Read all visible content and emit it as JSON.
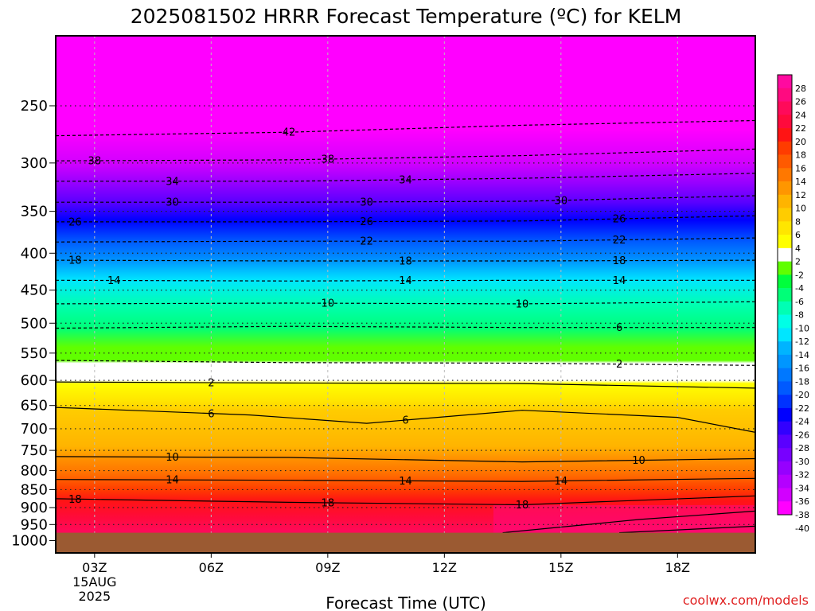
{
  "chart_data": {
    "type": "heatmap",
    "title": "2025081502 HRRR Forecast Temperature (ºC) for KELM",
    "xlabel": "Forecast Time (UTC)",
    "x_ticks": [
      "03Z",
      "06Z",
      "09Z",
      "12Z",
      "15Z",
      "18Z"
    ],
    "x_tick_sub": [
      "15AUG",
      "2025"
    ],
    "x_range_hours": [
      2,
      20
    ],
    "y_ticks": [
      250,
      300,
      350,
      400,
      450,
      500,
      550,
      600,
      650,
      700,
      750,
      800,
      850,
      900,
      950,
      1000
    ],
    "y_range_hPa": [
      200,
      1040
    ],
    "y_scale": "log-pressure",
    "surface_hPa": 975,
    "colorbar_labels": [
      "28",
      "26",
      "24",
      "22",
      "20",
      "18",
      "16",
      "14",
      "12",
      "10",
      "8",
      "6",
      "4",
      "2",
      "-2",
      "-4",
      "-6",
      "-8",
      "-10",
      "-12",
      "-14",
      "-16",
      "-18",
      "-20",
      "-22",
      "-24",
      "-26",
      "-28",
      "-30",
      "-32",
      "-34",
      "-36",
      "-38",
      "-40"
    ],
    "colorbar_colors": [
      "#ff0aa0",
      "#ff0a80",
      "#ff0a5a",
      "#ff0a3c",
      "#ff1414",
      "#ff3c00",
      "#ff5a00",
      "#ff7800",
      "#ff9600",
      "#ffb400",
      "#ffcc00",
      "#ffe600",
      "#ffff00",
      "#ffffff",
      "#60ff00",
      "#00ff3c",
      "#00ff78",
      "#00ffb4",
      "#00ffe6",
      "#00e6ff",
      "#00b4ff",
      "#0096ff",
      "#0078ff",
      "#005aff",
      "#0032ff",
      "#0000ff",
      "#3200ff",
      "#5a00ff",
      "#7800ff",
      "#9600ff",
      "#b400ff",
      "#d200ff",
      "#ff00ff"
    ],
    "isotherms": [
      {
        "value": -42,
        "label": "42",
        "label_x": [
          8
        ],
        "points": [
          [
            2,
            275
          ],
          [
            8,
            272
          ],
          [
            14,
            266
          ],
          [
            20,
            262
          ]
        ]
      },
      {
        "value": -38,
        "label": "38",
        "label_x": [
          3,
          9
        ],
        "points": [
          [
            2,
            298
          ],
          [
            8,
            297
          ],
          [
            14,
            293
          ],
          [
            20,
            287
          ]
        ]
      },
      {
        "value": -34,
        "label": "34",
        "label_x": [
          5,
          11
        ],
        "points": [
          [
            2,
            318
          ],
          [
            8,
            318
          ],
          [
            14,
            315
          ],
          [
            20,
            310
          ]
        ]
      },
      {
        "value": -30,
        "label": "30",
        "label_x": [
          5,
          10,
          15
        ],
        "points": [
          [
            2,
            340
          ],
          [
            8,
            340
          ],
          [
            14,
            339
          ],
          [
            20,
            333
          ]
        ]
      },
      {
        "value": -26,
        "label": "26",
        "label_x": [
          2.5,
          10,
          16.5
        ],
        "points": [
          [
            2,
            362
          ],
          [
            8,
            362
          ],
          [
            14,
            361
          ],
          [
            20,
            355
          ]
        ]
      },
      {
        "value": -22,
        "label": "22",
        "label_x": [
          10,
          16.5
        ],
        "points": [
          [
            2,
            386
          ],
          [
            8,
            385
          ],
          [
            14,
            385
          ],
          [
            20,
            381
          ]
        ]
      },
      {
        "value": -18,
        "label": "18",
        "label_x": [
          2.5,
          11,
          16.5
        ],
        "points": [
          [
            2,
            409
          ],
          [
            8,
            410
          ],
          [
            14,
            410
          ],
          [
            20,
            409
          ]
        ]
      },
      {
        "value": -14,
        "label": "14",
        "label_x": [
          3.5,
          11,
          16.5
        ],
        "points": [
          [
            2,
            436
          ],
          [
            8,
            437
          ],
          [
            14,
            436
          ],
          [
            20,
            436
          ]
        ]
      },
      {
        "value": -10,
        "label": "10",
        "label_x": [
          9,
          14
        ],
        "points": [
          [
            2,
            470
          ],
          [
            8,
            469
          ],
          [
            14,
            470
          ],
          [
            20,
            467
          ]
        ]
      },
      {
        "value": -6,
        "label": "6",
        "label_x": [
          16.5
        ],
        "points": [
          [
            2,
            508
          ],
          [
            8,
            505
          ],
          [
            14,
            507
          ],
          [
            20,
            507
          ]
        ]
      },
      {
        "value": -2,
        "label": "2",
        "label_x": [
          16.5
        ],
        "points": [
          [
            2,
            563
          ],
          [
            8,
            567
          ],
          [
            14,
            568
          ],
          [
            20,
            572
          ]
        ]
      },
      {
        "value": 2,
        "label": "2",
        "label_x": [
          6
        ],
        "points": [
          [
            2,
            603
          ],
          [
            8,
            605
          ],
          [
            14,
            606
          ],
          [
            20,
            615
          ]
        ]
      },
      {
        "value": 6,
        "label": "6",
        "label_x": [
          6,
          11
        ],
        "points": [
          [
            2,
            654
          ],
          [
            7,
            670
          ],
          [
            10,
            688
          ],
          [
            14,
            660
          ],
          [
            18,
            675
          ],
          [
            20,
            708
          ]
        ]
      },
      {
        "value": 10,
        "label": "10",
        "label_x": [
          5,
          17
        ],
        "points": [
          [
            2,
            765
          ],
          [
            8,
            767
          ],
          [
            14,
            778
          ],
          [
            20,
            770
          ]
        ]
      },
      {
        "value": 14,
        "label": "14",
        "label_x": [
          5,
          11,
          15
        ],
        "points": [
          [
            2,
            823
          ],
          [
            8,
            825
          ],
          [
            14,
            828
          ],
          [
            20,
            820
          ]
        ]
      },
      {
        "value": 18,
        "label": "18",
        "label_x": [
          2.5,
          9,
          14
        ],
        "points": [
          [
            2,
            875
          ],
          [
            8,
            885
          ],
          [
            14,
            892
          ],
          [
            20,
            867
          ]
        ]
      },
      {
        "value": 22,
        "label": "",
        "label_x": [],
        "points": [
          [
            13.5,
            975
          ],
          [
            17,
            935
          ],
          [
            20,
            910
          ]
        ]
      },
      {
        "value": 24,
        "label": "",
        "label_x": [],
        "points": [
          [
            16.5,
            975
          ],
          [
            20,
            955
          ]
        ]
      }
    ]
  },
  "credit": "coolwx.com/models"
}
